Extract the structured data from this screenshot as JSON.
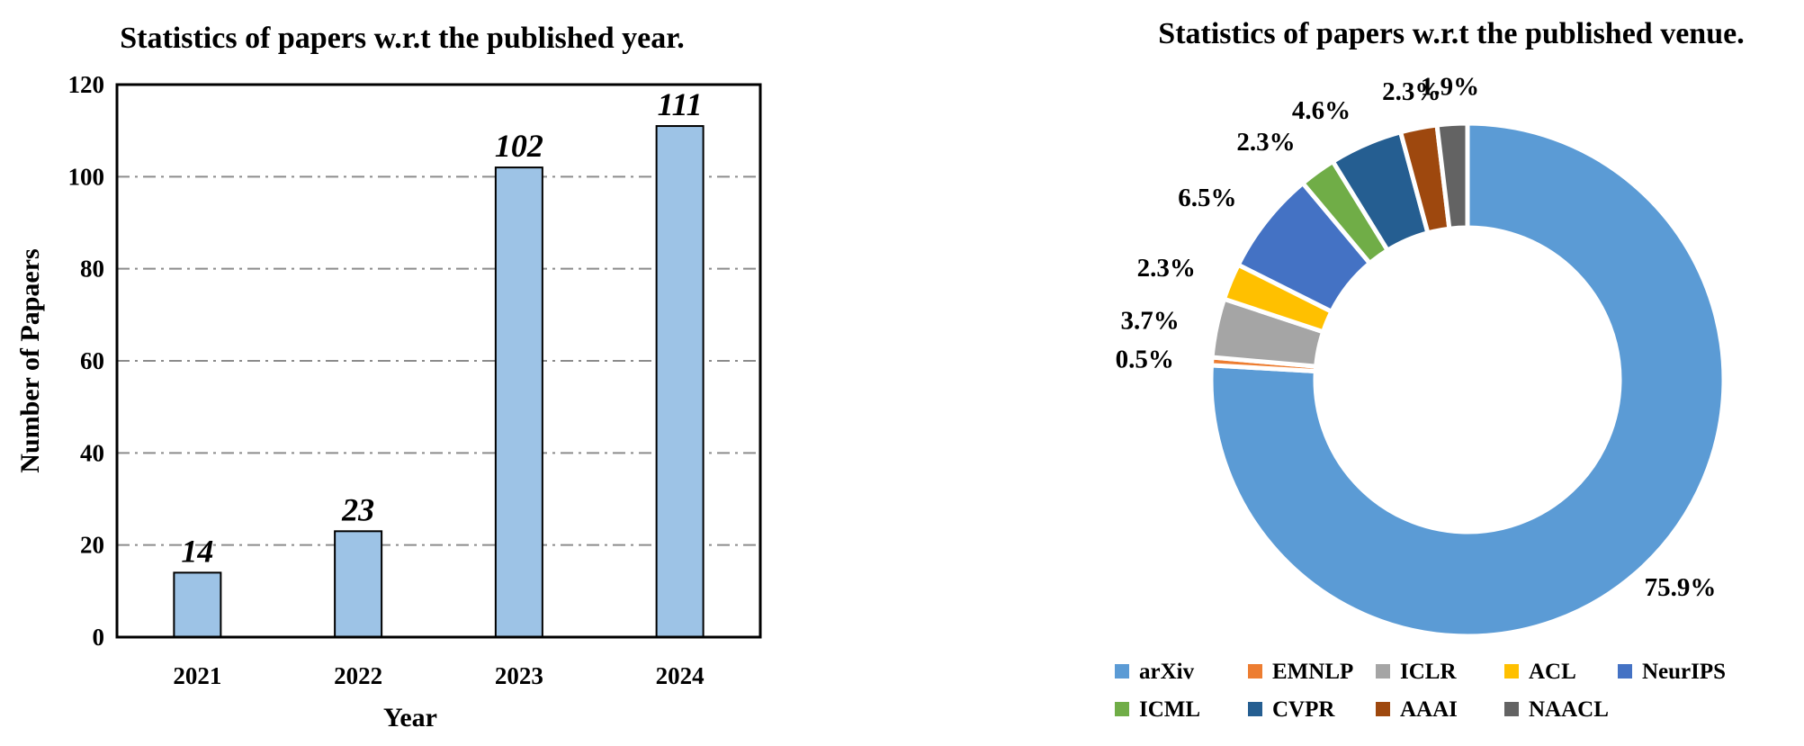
{
  "chart_data": [
    {
      "type": "bar",
      "title": "Statistics of papers w.r.t the published year.",
      "xlabel": "Year",
      "ylabel": "Number of Papaers",
      "categories": [
        "2021",
        "2022",
        "2023",
        "2024"
      ],
      "values": [
        14,
        23,
        102,
        111
      ],
      "data_labels": [
        "14",
        "23",
        "102",
        "111"
      ],
      "ylim": [
        0,
        120
      ],
      "yticks": [
        "0",
        "20",
        "40",
        "60",
        "80",
        "100",
        "120"
      ],
      "grid": true,
      "bar_color": "#9DC3E6",
      "bar_edge_color": "#000000"
    },
    {
      "type": "pie",
      "title": "Statistics of papers w.r.t the published venue.",
      "donut": true,
      "legend_position": "bottom",
      "slices": [
        {
          "label": "arXiv",
          "value": 75.9,
          "text": "75.9%",
          "color": "#5B9BD5"
        },
        {
          "label": "EMNLP",
          "value": 0.5,
          "text": "0.5%",
          "color": "#ED7D31"
        },
        {
          "label": "ICLR",
          "value": 3.7,
          "text": "3.7%",
          "color": "#A5A5A5"
        },
        {
          "label": "ACL",
          "value": 2.3,
          "text": "2.3%",
          "color": "#FFC000"
        },
        {
          "label": "NeurIPS",
          "value": 6.5,
          "text": "6.5%",
          "color": "#4472C4"
        },
        {
          "label": "ICML",
          "value": 2.3,
          "text": "2.3%",
          "color": "#70AD47"
        },
        {
          "label": "CVPR",
          "value": 4.6,
          "text": "4.6%",
          "color": "#255E91"
        },
        {
          "label": "AAAI",
          "value": 2.3,
          "text": "2.3%",
          "color": "#9E480E"
        },
        {
          "label": "NAACL",
          "value": 1.9,
          "text": "1.9%",
          "color": "#636363"
        }
      ]
    }
  ]
}
